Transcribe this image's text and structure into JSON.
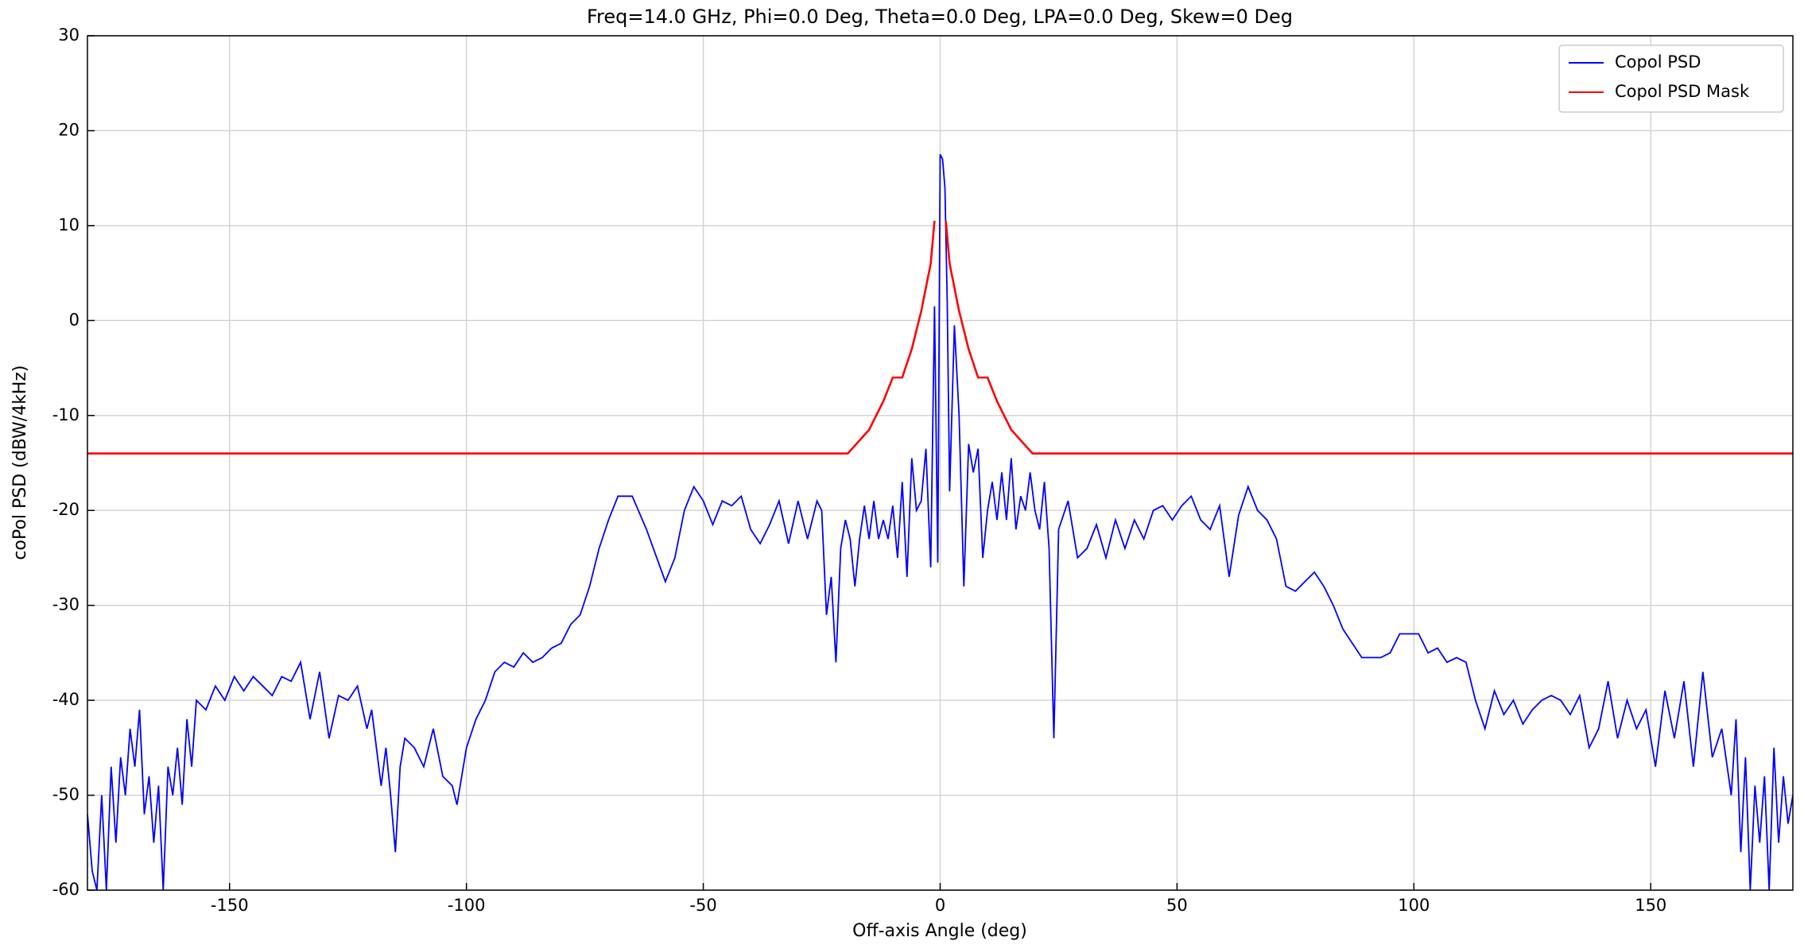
{
  "chart_data": {
    "type": "line",
    "title": "Freq=14.0 GHz, Phi=0.0 Deg, Theta=0.0 Deg, LPA=0.0 Deg, Skew=0 Deg",
    "x_label": "Off-axis Angle (deg)",
    "y_label": "coPol PSD (dBW/4kHz)",
    "xlim": [
      -180,
      180
    ],
    "ylim": [
      -60,
      30
    ],
    "xticks": [
      -150,
      -100,
      -50,
      0,
      50,
      100,
      150
    ],
    "yticks": [
      -60,
      -50,
      -40,
      -30,
      -20,
      -10,
      0,
      10,
      20,
      30
    ],
    "grid": true,
    "legend": "upper right",
    "series": [
      {
        "name": "Copol PSD",
        "color": "#0000ff",
        "x": [
          -180,
          -179,
          -178,
          -177,
          -176,
          -175,
          -174,
          -173,
          -172,
          -171,
          -170,
          -169,
          -168,
          -167,
          -166,
          -165,
          -164,
          -163,
          -162,
          -161,
          -160,
          -159,
          -158,
          -157,
          -155,
          -153,
          -151,
          -149,
          -147,
          -145,
          -143,
          -141,
          -139,
          -137,
          -135,
          -133,
          -131,
          -129,
          -127,
          -125,
          -123,
          -121,
          -120,
          -118,
          -117,
          -116,
          -115,
          -114,
          -113,
          -111,
          -109,
          -107,
          -105,
          -103,
          -102,
          -100,
          -98,
          -96,
          -94,
          -92,
          -90,
          -88,
          -86,
          -84,
          -82,
          -80,
          -78,
          -76,
          -74,
          -72,
          -70,
          -68,
          -65,
          -62,
          -58,
          -56,
          -54,
          -52,
          -50,
          -48,
          -46,
          -44,
          -42,
          -40,
          -38,
          -36,
          -34,
          -32,
          -30,
          -28,
          -26,
          -25,
          -24,
          -23,
          -22,
          -21,
          -20,
          -19,
          -18,
          -17,
          -16,
          -15,
          -14,
          -13,
          -12,
          -11,
          -10,
          -9,
          -8,
          -7,
          -6,
          -5,
          -4,
          -3,
          -2,
          -1.2,
          -0.5,
          0,
          0.5,
          1,
          1.5,
          2,
          3,
          4,
          5,
          6,
          7,
          8,
          9,
          10,
          11,
          12,
          13,
          14,
          15,
          16,
          17,
          18,
          19,
          20,
          21,
          22,
          23,
          24,
          25,
          27,
          29,
          31,
          33,
          35,
          37,
          39,
          41,
          43,
          45,
          47,
          49,
          51,
          53,
          55,
          57,
          59,
          61,
          63,
          65,
          67,
          69,
          71,
          73,
          75,
          77,
          79,
          81,
          83,
          85,
          87,
          89,
          91,
          93,
          95,
          97,
          99,
          101,
          103,
          105,
          107,
          109,
          111,
          113,
          115,
          117,
          119,
          121,
          123,
          125,
          127,
          129,
          131,
          133,
          135,
          137,
          139,
          141,
          143,
          145,
          147,
          149,
          151,
          153,
          155,
          157,
          159,
          161,
          163,
          165,
          167,
          168,
          169,
          170,
          171,
          172,
          173,
          174,
          175,
          176,
          177,
          178,
          179,
          180
        ],
        "values": [
          -52,
          -58,
          -60,
          -50,
          -60,
          -47,
          -55,
          -46,
          -50,
          -43,
          -47,
          -41,
          -52,
          -48,
          -55,
          -49,
          -60,
          -47,
          -50,
          -45,
          -51,
          -42,
          -47,
          -40,
          -41,
          -38.5,
          -40,
          -37.5,
          -39,
          -37.5,
          -38.5,
          -39.5,
          -37.5,
          -38,
          -36,
          -42,
          -37,
          -44,
          -39.5,
          -40,
          -38.5,
          -43,
          -41,
          -49,
          -45,
          -50,
          -56,
          -47,
          -44,
          -45,
          -47,
          -43,
          -48,
          -49,
          -51,
          -45,
          -42,
          -40,
          -37,
          -36,
          -36.5,
          -35,
          -36,
          -35.5,
          -34.5,
          -34,
          -32,
          -31,
          -28,
          -24,
          -21,
          -18.5,
          -18.5,
          -22,
          -27.5,
          -25,
          -20,
          -17.5,
          -19,
          -21.5,
          -19,
          -19.5,
          -18.5,
          -22,
          -23.5,
          -21.5,
          -19,
          -23.5,
          -19,
          -23,
          -19,
          -20,
          -31,
          -27,
          -36,
          -24,
          -21,
          -23,
          -28,
          -23,
          -19.5,
          -23,
          -19,
          -23,
          -21,
          -23,
          -19.5,
          -25,
          -17,
          -27,
          -14.5,
          -20,
          -19,
          -13.5,
          -26,
          1.5,
          -25.5,
          17.5,
          17,
          14,
          2,
          -18,
          -0.5,
          -10,
          -28,
          -13,
          -16,
          -13.5,
          -25,
          -20,
          -17,
          -21,
          -16,
          -21,
          -14.5,
          -22,
          -18.5,
          -20,
          -16,
          -20,
          -22,
          -17,
          -24,
          -44,
          -22,
          -19,
          -25,
          -24,
          -21.5,
          -25,
          -21,
          -24,
          -21,
          -23,
          -20,
          -19.5,
          -21,
          -19.5,
          -18.5,
          -21,
          -22,
          -19.5,
          -27,
          -20.5,
          -17.5,
          -20,
          -21,
          -23,
          -28,
          -28.5,
          -27.5,
          -26.5,
          -28,
          -30,
          -32.5,
          -34,
          -35.5,
          -35.5,
          -35.5,
          -35,
          -33,
          -33,
          -33,
          -35,
          -34.5,
          -36,
          -35.5,
          -36,
          -40,
          -43,
          -39,
          -41.5,
          -40,
          -42.5,
          -41,
          -40,
          -39.5,
          -40,
          -41.5,
          -39.5,
          -45,
          -43,
          -38,
          -44,
          -40,
          -43,
          -41,
          -47,
          -39,
          -44,
          -38,
          -47,
          -37,
          -46,
          -43,
          -50,
          -42,
          -56,
          -46,
          -60,
          -49,
          -55,
          -48,
          -60,
          -45,
          -55,
          -48,
          -53,
          -50
        ]
      },
      {
        "name": "Copol PSD Mask",
        "color": "#ff0000",
        "x": [
          -180,
          -19.5,
          -15,
          -12,
          -10,
          -8,
          -6,
          -4,
          -2,
          -1.2,
          0,
          1.2,
          2,
          4,
          6,
          8,
          10,
          12,
          15,
          19.5,
          180
        ],
        "values": [
          -14,
          -14,
          -11.5,
          -8.5,
          -6,
          -6,
          -3,
          1,
          6,
          10.5,
          null,
          10.5,
          6,
          1,
          -3,
          -6,
          -6,
          -8.5,
          -11.5,
          -14,
          -14
        ]
      }
    ]
  }
}
